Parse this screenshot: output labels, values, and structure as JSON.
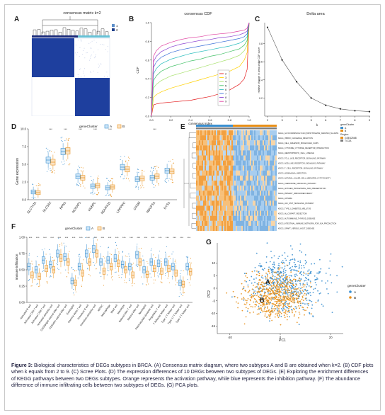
{
  "panels": {
    "A": {
      "letter": "A",
      "title": "consensus matrix k=2",
      "legend": [
        "1",
        "2"
      ],
      "colors": {
        "cluster1": "#5b8ec9",
        "cluster2": "#1f3f8a",
        "matrix": "#1e3f9e",
        "bar": "#1a2a7a",
        "bar2": "#66c2d6"
      }
    },
    "B": {
      "letter": "B",
      "title": "consensus CDF",
      "xlabel": "consensus index",
      "ylabel": "CDF",
      "legend": [
        "2",
        "3",
        "4",
        "5",
        "6",
        "7",
        "8",
        "9"
      ],
      "legend_colors": [
        "#e41a1c",
        "#ffd000",
        "#a6e06a",
        "#46c26a",
        "#2fbfbf",
        "#3a6fd8",
        "#8a3fd1",
        "#e040a0"
      ]
    },
    "C": {
      "letter": "C",
      "title": "Delta area",
      "xlabel": "k",
      "ylabel": "relative change in area under CDF curve"
    },
    "D": {
      "letter": "D",
      "legend_title": "geneCluster",
      "legend": [
        "A",
        "B"
      ],
      "ylabel": "Gene expression",
      "genes": [
        "SLC7A11",
        "SLC3A2",
        "RPN1",
        "NCKAP1",
        "NUBPL",
        "NDUFA11",
        "LRPPRC",
        "OXSM",
        "NDUFS1",
        "GYS1"
      ],
      "sig": [
        "",
        "***",
        "***",
        "***",
        "***",
        "***",
        "",
        "",
        "***",
        ""
      ]
    },
    "E": {
      "letter": "E",
      "legend_title": "geneCluster",
      "legend_title2": "Region",
      "legend": [
        "A",
        "B"
      ],
      "legend2": [
        "GSE42568",
        "TCGA"
      ],
      "rows": [
        "KEGG_GLYCOSAMINOGLYCAN_BIOSYNTHESIS_KERATAN_SULFATE",
        "KEGG_VIBRIO_CHOLERAE_INFECTION",
        "KEGG_CELL_ADHESION_MOLECULES_CAMS",
        "KEGG_CYTOKINE_CYTOKINE_RECEPTOR_INTERACTION",
        "KEGG_HEMATOPOIETIC_CELL_LINEAGE",
        "KEGG_TOLL_LIKE_RECEPTOR_SIGNALING_PATHWAY",
        "KEGG_NOD_LIKE_RECEPTOR_SIGNALING_PATHWAY",
        "KEGG_T_CELL_RECEPTOR_SIGNALING_PATHWAY",
        "KEGG_LEISHMANIA_INFECTION",
        "KEGG_NATURAL_KILLER_CELL_MEDIATED_CYTOTOXICITY",
        "KEGG_CHEMOKINE_SIGNALING_PATHWAY",
        "KEGG_ANTIGEN_PROCESSING_AND_PRESENTATION",
        "KEGG_PRIMARY_IMMUNODEFICIENCY",
        "KEGG_ASTHMA",
        "KEGG_JAK_STAT_SIGNALING_PATHWAY",
        "KEGG_TYPE_I_DIABETES_MELLITUS",
        "KEGG_ALLOGRAFT_REJECTION",
        "KEGG_AUTOIMMUNE_THYROID_DISEASE",
        "KEGG_INTESTINAL_IMMUNE_NETWORK_FOR_IGA_PRODUCTION",
        "KEGG_GRAFT_VERSUS_HOST_DISEASE"
      ]
    },
    "F": {
      "letter": "F",
      "legend_title": "geneCluster",
      "legend": [
        "A",
        "B"
      ],
      "ylabel": "Immune infiltration",
      "cells": [
        "Activated B cell",
        "Activated CD4 T cell",
        "Activated CD8 T cell",
        "Activated dendritic cell",
        "CD56bright natural killer cell",
        "CD56dim natural killer cell",
        "Eosinophil",
        "Gamma delta T cell",
        "Immature B cell",
        "Immature dendritic cell",
        "MDSC",
        "Macrophage",
        "Mast cell",
        "Monocyte",
        "Natural killer T cell",
        "Natural killer cell",
        "Neutrophil",
        "Plasmacytoid dendritic cell",
        "Regulatory T cell",
        "T follicular helper cell",
        "Type 1 T helper cell",
        "Type 17 T helper cell",
        "Type 2 T helper cell"
      ],
      "sig": [
        "***",
        "***",
        "***",
        "***",
        "***",
        "***",
        "***",
        "***",
        "***",
        "***",
        "***",
        "***",
        "***",
        "***",
        "***",
        "***",
        "***",
        "***",
        "***",
        "***",
        "***",
        "***",
        "***"
      ]
    },
    "G": {
      "letter": "G",
      "legend_title": "geneCluster",
      "legend": [
        "A",
        "B"
      ],
      "xlabel": "PC1",
      "ylabel": "PC2",
      "label_A": "A",
      "label_B": "B",
      "colors": {
        "A": "#3a8fd0",
        "B": "#e8901a"
      }
    }
  },
  "chart_data": [
    {
      "type": "line",
      "title": "consensus CDF",
      "xlabel": "consensus index",
      "ylabel": "CDF",
      "xlim": [
        0,
        1
      ],
      "ylim": [
        0,
        1
      ],
      "x_ticks": [
        "0.0",
        "0.2",
        "0.4",
        "0.6",
        "0.8",
        "1.0"
      ],
      "y_ticks": [
        "0.0",
        "0.2",
        "0.4",
        "0.6",
        "0.8",
        "1.0"
      ],
      "x": [
        0,
        0.02,
        0.05,
        0.1,
        0.2,
        0.3,
        0.4,
        0.5,
        0.6,
        0.7,
        0.8,
        0.9,
        0.95,
        0.98,
        1.0
      ],
      "series": [
        {
          "name": "2",
          "values": [
            0,
            0.12,
            0.13,
            0.14,
            0.15,
            0.16,
            0.17,
            0.19,
            0.21,
            0.24,
            0.28,
            0.34,
            0.4,
            0.5,
            1.0
          ]
        },
        {
          "name": "3",
          "values": [
            0,
            0.2,
            0.23,
            0.26,
            0.3,
            0.33,
            0.36,
            0.39,
            0.42,
            0.45,
            0.48,
            0.53,
            0.6,
            0.68,
            1.0
          ]
        },
        {
          "name": "4",
          "values": [
            0,
            0.3,
            0.34,
            0.38,
            0.43,
            0.46,
            0.49,
            0.52,
            0.55,
            0.58,
            0.61,
            0.65,
            0.7,
            0.76,
            1.0
          ]
        },
        {
          "name": "5",
          "values": [
            0,
            0.38,
            0.43,
            0.48,
            0.53,
            0.56,
            0.59,
            0.61,
            0.64,
            0.66,
            0.69,
            0.72,
            0.76,
            0.81,
            1.0
          ]
        },
        {
          "name": "6",
          "values": [
            0,
            0.45,
            0.51,
            0.56,
            0.61,
            0.64,
            0.67,
            0.69,
            0.71,
            0.73,
            0.75,
            0.78,
            0.81,
            0.85,
            1.0
          ]
        },
        {
          "name": "7",
          "values": [
            0,
            0.52,
            0.58,
            0.63,
            0.68,
            0.71,
            0.73,
            0.75,
            0.77,
            0.79,
            0.81,
            0.83,
            0.85,
            0.88,
            1.0
          ]
        },
        {
          "name": "8",
          "values": [
            0,
            0.58,
            0.64,
            0.69,
            0.74,
            0.77,
            0.79,
            0.81,
            0.82,
            0.84,
            0.85,
            0.87,
            0.89,
            0.91,
            1.0
          ]
        },
        {
          "name": "9",
          "values": [
            0,
            0.64,
            0.7,
            0.75,
            0.79,
            0.82,
            0.84,
            0.85,
            0.87,
            0.88,
            0.89,
            0.91,
            0.92,
            0.94,
            1.0
          ]
        }
      ]
    },
    {
      "type": "line",
      "title": "Delta area",
      "xlabel": "k",
      "ylabel": "relative change in area under CDF curve",
      "x": [
        2,
        3,
        4,
        5,
        6,
        7,
        8,
        9
      ],
      "values": [
        0.98,
        0.62,
        0.38,
        0.2,
        0.12,
        0.08,
        0.06,
        0.05
      ],
      "ylim": [
        0,
        1
      ],
      "x_ticks": [
        "2",
        "3",
        "4",
        "5",
        "6",
        "7",
        "8",
        "9"
      ],
      "y_ticks": [
        "0.2",
        "0.4",
        "0.6",
        "0.8"
      ]
    },
    {
      "type": "bar",
      "subtype": "boxplot",
      "ylabel": "Gene expression",
      "categories": [
        "SLC7A11",
        "SLC3A2",
        "RPN1",
        "NCKAP1",
        "NUBPL",
        "NDUFA11",
        "LRPPRC",
        "OXSM",
        "NDUFS1",
        "GYS1"
      ],
      "ylim": [
        0,
        10
      ],
      "y_ticks": [
        "0.0",
        "2.5",
        "5.0",
        "7.5",
        "10.0"
      ],
      "series": [
        {
          "name": "A",
          "values": [
            1.1,
            5.6,
            6.8,
            3.3,
            1.9,
            1.7,
            4.6,
            2.9,
            3.1,
            4.1
          ]
        },
        {
          "name": "B",
          "values": [
            1.0,
            5.3,
            6.9,
            3.1,
            2.0,
            1.8,
            4.3,
            3.0,
            3.3,
            4.0
          ]
        }
      ]
    },
    {
      "type": "bar",
      "subtype": "boxplot",
      "ylabel": "Immune infiltration",
      "ylim": [
        0,
        1
      ],
      "y_ticks": [
        "0.00",
        "0.25",
        "0.50",
        "0.75",
        "1.00"
      ],
      "categories": [
        "Activated B cell",
        "Activated CD4 T cell",
        "Activated CD8 T cell",
        "Activated dendritic cell",
        "CD56bright natural killer cell",
        "CD56dim natural killer cell",
        "Eosinophil",
        "Gamma delta T cell",
        "Immature B cell",
        "Immature dendritic cell",
        "MDSC",
        "Macrophage",
        "Mast cell",
        "Monocyte",
        "Natural killer T cell",
        "Natural killer cell",
        "Neutrophil",
        "Plasmacytoid dendritic cell",
        "Regulatory T cell",
        "T follicular helper cell",
        "Type 1 T helper cell",
        "Type 17 T helper cell",
        "Type 2 T helper cell"
      ],
      "series": [
        {
          "name": "A",
          "values": [
            0.55,
            0.5,
            0.65,
            0.58,
            0.75,
            0.7,
            0.33,
            0.55,
            0.75,
            0.82,
            0.62,
            0.65,
            0.68,
            0.58,
            0.55,
            0.73,
            0.5,
            0.62,
            0.6,
            0.62,
            0.55,
            0.3,
            0.55
          ]
        },
        {
          "name": "B",
          "values": [
            0.42,
            0.4,
            0.52,
            0.5,
            0.68,
            0.62,
            0.3,
            0.45,
            0.62,
            0.75,
            0.48,
            0.55,
            0.6,
            0.5,
            0.42,
            0.62,
            0.43,
            0.52,
            0.48,
            0.52,
            0.45,
            0.28,
            0.47
          ]
        }
      ]
    },
    {
      "type": "scatter",
      "xlabel": "PC1",
      "ylabel": "PC2",
      "xlim": [
        -25,
        25
      ],
      "ylim": [
        -18,
        18
      ],
      "x_ticks": [
        "-20",
        "0",
        "20"
      ],
      "y_ticks": [
        "-15",
        "-10",
        "-5",
        "0",
        "5",
        "10"
      ],
      "series": [
        {
          "name": "A",
          "center": [
            3,
            2
          ],
          "spread": [
            7,
            6
          ]
        },
        {
          "name": "B",
          "center": [
            -2,
            -3
          ],
          "spread": [
            6,
            4.5
          ]
        }
      ]
    }
  ],
  "caption": {
    "lead": "Figure 3:",
    "text": " Biological characteristics of DEGs subtypes in BRCA. (A) Consensus matrix diagram, where two subtypes A and B are obtained when k=2. (B) CDF plots when k equals from 2 to 9. (C) Scree Plots. (D) The expression differences of 10 DRGs between two subtypes of DEGs. (E) Exploring the enrichment differences of KEGG pathways between two DEGs subtypes. Orange represents the activation pathway, while blue represents the inhibition pathway. (F) The abundance difference of immune infiltrating cells between two subtypes of DEGs. (G) PCA plots."
  }
}
